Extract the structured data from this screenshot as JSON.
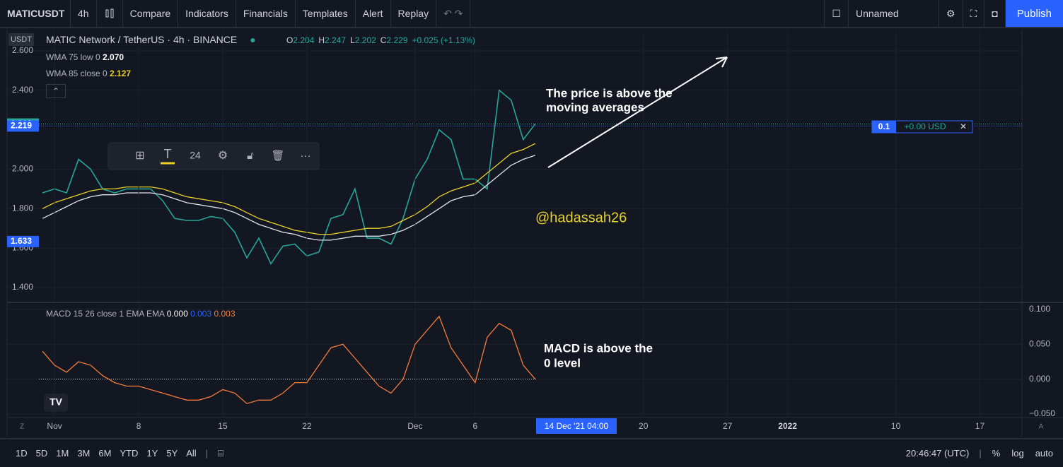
{
  "toolbar": {
    "symbol": "MATICUSDT",
    "interval": "4h",
    "items": [
      "Compare",
      "Indicators",
      "Financials",
      "Templates",
      "Alert",
      "Replay"
    ],
    "layout_name": "Unnamed",
    "publish": "Publish"
  },
  "legend": {
    "title": "MATIC Network / TetherUS · 4h · BINANCE",
    "ohlc": [
      {
        "key": "O",
        "value": "2.204"
      },
      {
        "key": "H",
        "value": "2.247"
      },
      {
        "key": "L",
        "value": "2.202"
      },
      {
        "key": "C",
        "value": "2.229"
      }
    ],
    "change": "+0.025 (+1.13%)",
    "studies": [
      {
        "name": "WMA 75 low 0",
        "value": "2.070"
      },
      {
        "name": "WMA 85 close 0",
        "value": "2.127"
      }
    ],
    "macd": {
      "name": "MACD 15 26 close 1 EMA EMA",
      "values": [
        "0.000",
        "0.003",
        "0.003"
      ]
    }
  },
  "currency": "USDT",
  "drawing_toolbar": {
    "font_size": "24"
  },
  "position": {
    "qty": "0.1",
    "pnl": "+0.00 USD"
  },
  "annotations": {
    "price": [
      "The price is above the",
      "moving averages"
    ],
    "macd": [
      "MACD is above the",
      "0 level"
    ],
    "watermark": "@hadassah26"
  },
  "crosshair_label": "14 Dec '21  04:00",
  "bottom": {
    "ranges": [
      "1D",
      "5D",
      "1M",
      "3M",
      "6M",
      "YTD",
      "1Y",
      "5Y",
      "All"
    ],
    "clock": "20:46:47 (UTC)",
    "options": [
      "%",
      "log",
      "auto"
    ]
  },
  "chart_data": [
    {
      "type": "line",
      "x": [
        0,
        1,
        2,
        3,
        4,
        5,
        6,
        7,
        8,
        9,
        10,
        11,
        12,
        13,
        14,
        15,
        16,
        17,
        18,
        19,
        20,
        21,
        22,
        23,
        24,
        25,
        26,
        27,
        28,
        29,
        30,
        31,
        32,
        33,
        34,
        35,
        36,
        37,
        38,
        39,
        40,
        41
      ],
      "series": [
        {
          "name": "Close",
          "color": "#26a69a",
          "values": [
            1.88,
            1.9,
            1.88,
            2.05,
            2.0,
            1.9,
            1.88,
            1.9,
            1.9,
            1.9,
            1.84,
            1.75,
            1.74,
            1.74,
            1.76,
            1.75,
            1.68,
            1.55,
            1.65,
            1.52,
            1.61,
            1.62,
            1.56,
            1.58,
            1.75,
            1.77,
            1.9,
            1.65,
            1.65,
            1.62,
            1.75,
            1.95,
            2.05,
            2.2,
            2.15,
            1.95,
            1.95,
            1.9,
            2.4,
            2.35,
            2.15,
            2.23
          ]
        },
        {
          "name": "WMA 75 low",
          "color": "#e0e3eb",
          "values": [
            1.75,
            1.78,
            1.81,
            1.84,
            1.86,
            1.87,
            1.87,
            1.88,
            1.88,
            1.88,
            1.87,
            1.85,
            1.83,
            1.82,
            1.81,
            1.8,
            1.78,
            1.75,
            1.72,
            1.7,
            1.68,
            1.67,
            1.65,
            1.64,
            1.64,
            1.65,
            1.66,
            1.66,
            1.66,
            1.67,
            1.69,
            1.72,
            1.76,
            1.8,
            1.84,
            1.86,
            1.87,
            1.92,
            1.97,
            2.02,
            2.05,
            2.07
          ]
        },
        {
          "name": "WMA 85 close",
          "color": "#e8d12a",
          "values": [
            1.8,
            1.83,
            1.85,
            1.87,
            1.89,
            1.9,
            1.9,
            1.91,
            1.91,
            1.91,
            1.9,
            1.88,
            1.86,
            1.85,
            1.84,
            1.83,
            1.81,
            1.78,
            1.75,
            1.73,
            1.71,
            1.69,
            1.68,
            1.67,
            1.67,
            1.68,
            1.69,
            1.7,
            1.7,
            1.71,
            1.74,
            1.77,
            1.81,
            1.86,
            1.89,
            1.91,
            1.93,
            1.98,
            2.03,
            2.08,
            2.1,
            2.13
          ]
        }
      ],
      "xlim": [
        -0.3,
        81.5
      ],
      "ylim": [
        1.328,
        2.704
      ],
      "yticks": [
        {
          "value": 2.6,
          "label": "2.600"
        },
        {
          "value": 2.4,
          "label": "2.400"
        },
        {
          "value": 2.0,
          "label": "2.000"
        },
        {
          "value": 1.8,
          "label": "1.800"
        },
        {
          "value": 1.6,
          "label": "1.600"
        },
        {
          "value": 1.4,
          "label": "1.400"
        }
      ],
      "price_lines": [
        {
          "value": 2.229,
          "color": "#26a69a",
          "dotted": true
        },
        {
          "value": 2.219,
          "color": "#2962ff",
          "dotted": true
        },
        {
          "value": 1.633,
          "color": "#2962ff",
          "dotted": false
        }
      ],
      "grid": true
    },
    {
      "type": "line",
      "x": [
        0,
        1,
        2,
        3,
        4,
        5,
        6,
        7,
        8,
        9,
        10,
        11,
        12,
        13,
        14,
        15,
        16,
        17,
        18,
        19,
        20,
        21,
        22,
        23,
        24,
        25,
        26,
        27,
        28,
        29,
        30,
        31,
        32,
        33,
        34,
        35,
        36,
        37,
        38,
        39,
        40,
        41
      ],
      "series": [
        {
          "name": "MACD",
          "color": "#f57c3a",
          "values": [
            0.04,
            0.02,
            0.01,
            0.025,
            0.02,
            0.005,
            -0.005,
            -0.01,
            -0.01,
            -0.015,
            -0.02,
            -0.025,
            -0.03,
            -0.03,
            -0.025,
            -0.015,
            -0.02,
            -0.035,
            -0.03,
            -0.03,
            -0.02,
            -0.005,
            -0.005,
            0.02,
            0.045,
            0.05,
            0.03,
            0.01,
            -0.01,
            -0.02,
            0.0,
            0.05,
            0.07,
            0.09,
            0.045,
            0.02,
            -0.005,
            0.06,
            0.08,
            0.07,
            0.02,
            0.0
          ]
        }
      ],
      "xlim": [
        -0.3,
        81.5
      ],
      "ylim": [
        -0.054,
        0.108
      ],
      "yticks": [
        {
          "value": 0.1,
          "label": "0.100"
        },
        {
          "value": 0.05,
          "label": "0.050"
        },
        {
          "value": 0,
          "label": "0.000"
        },
        {
          "value": -0.05,
          "label": "−0.050"
        }
      ],
      "xticks": [
        {
          "value": 1,
          "label": "Nov"
        },
        8,
        15,
        22,
        {
          "value": 31,
          "label": "Dec"
        },
        {
          "value": 36,
          "label": "6"
        },
        {
          "value": 50,
          "label": "20"
        },
        {
          "value": 57,
          "label": "27"
        },
        {
          "value": 62,
          "label": "2022"
        },
        {
          "value": 71,
          "label": "10"
        },
        {
          "value": 78,
          "label": "17"
        }
      ],
      "hline": 0,
      "grid": true
    }
  ]
}
